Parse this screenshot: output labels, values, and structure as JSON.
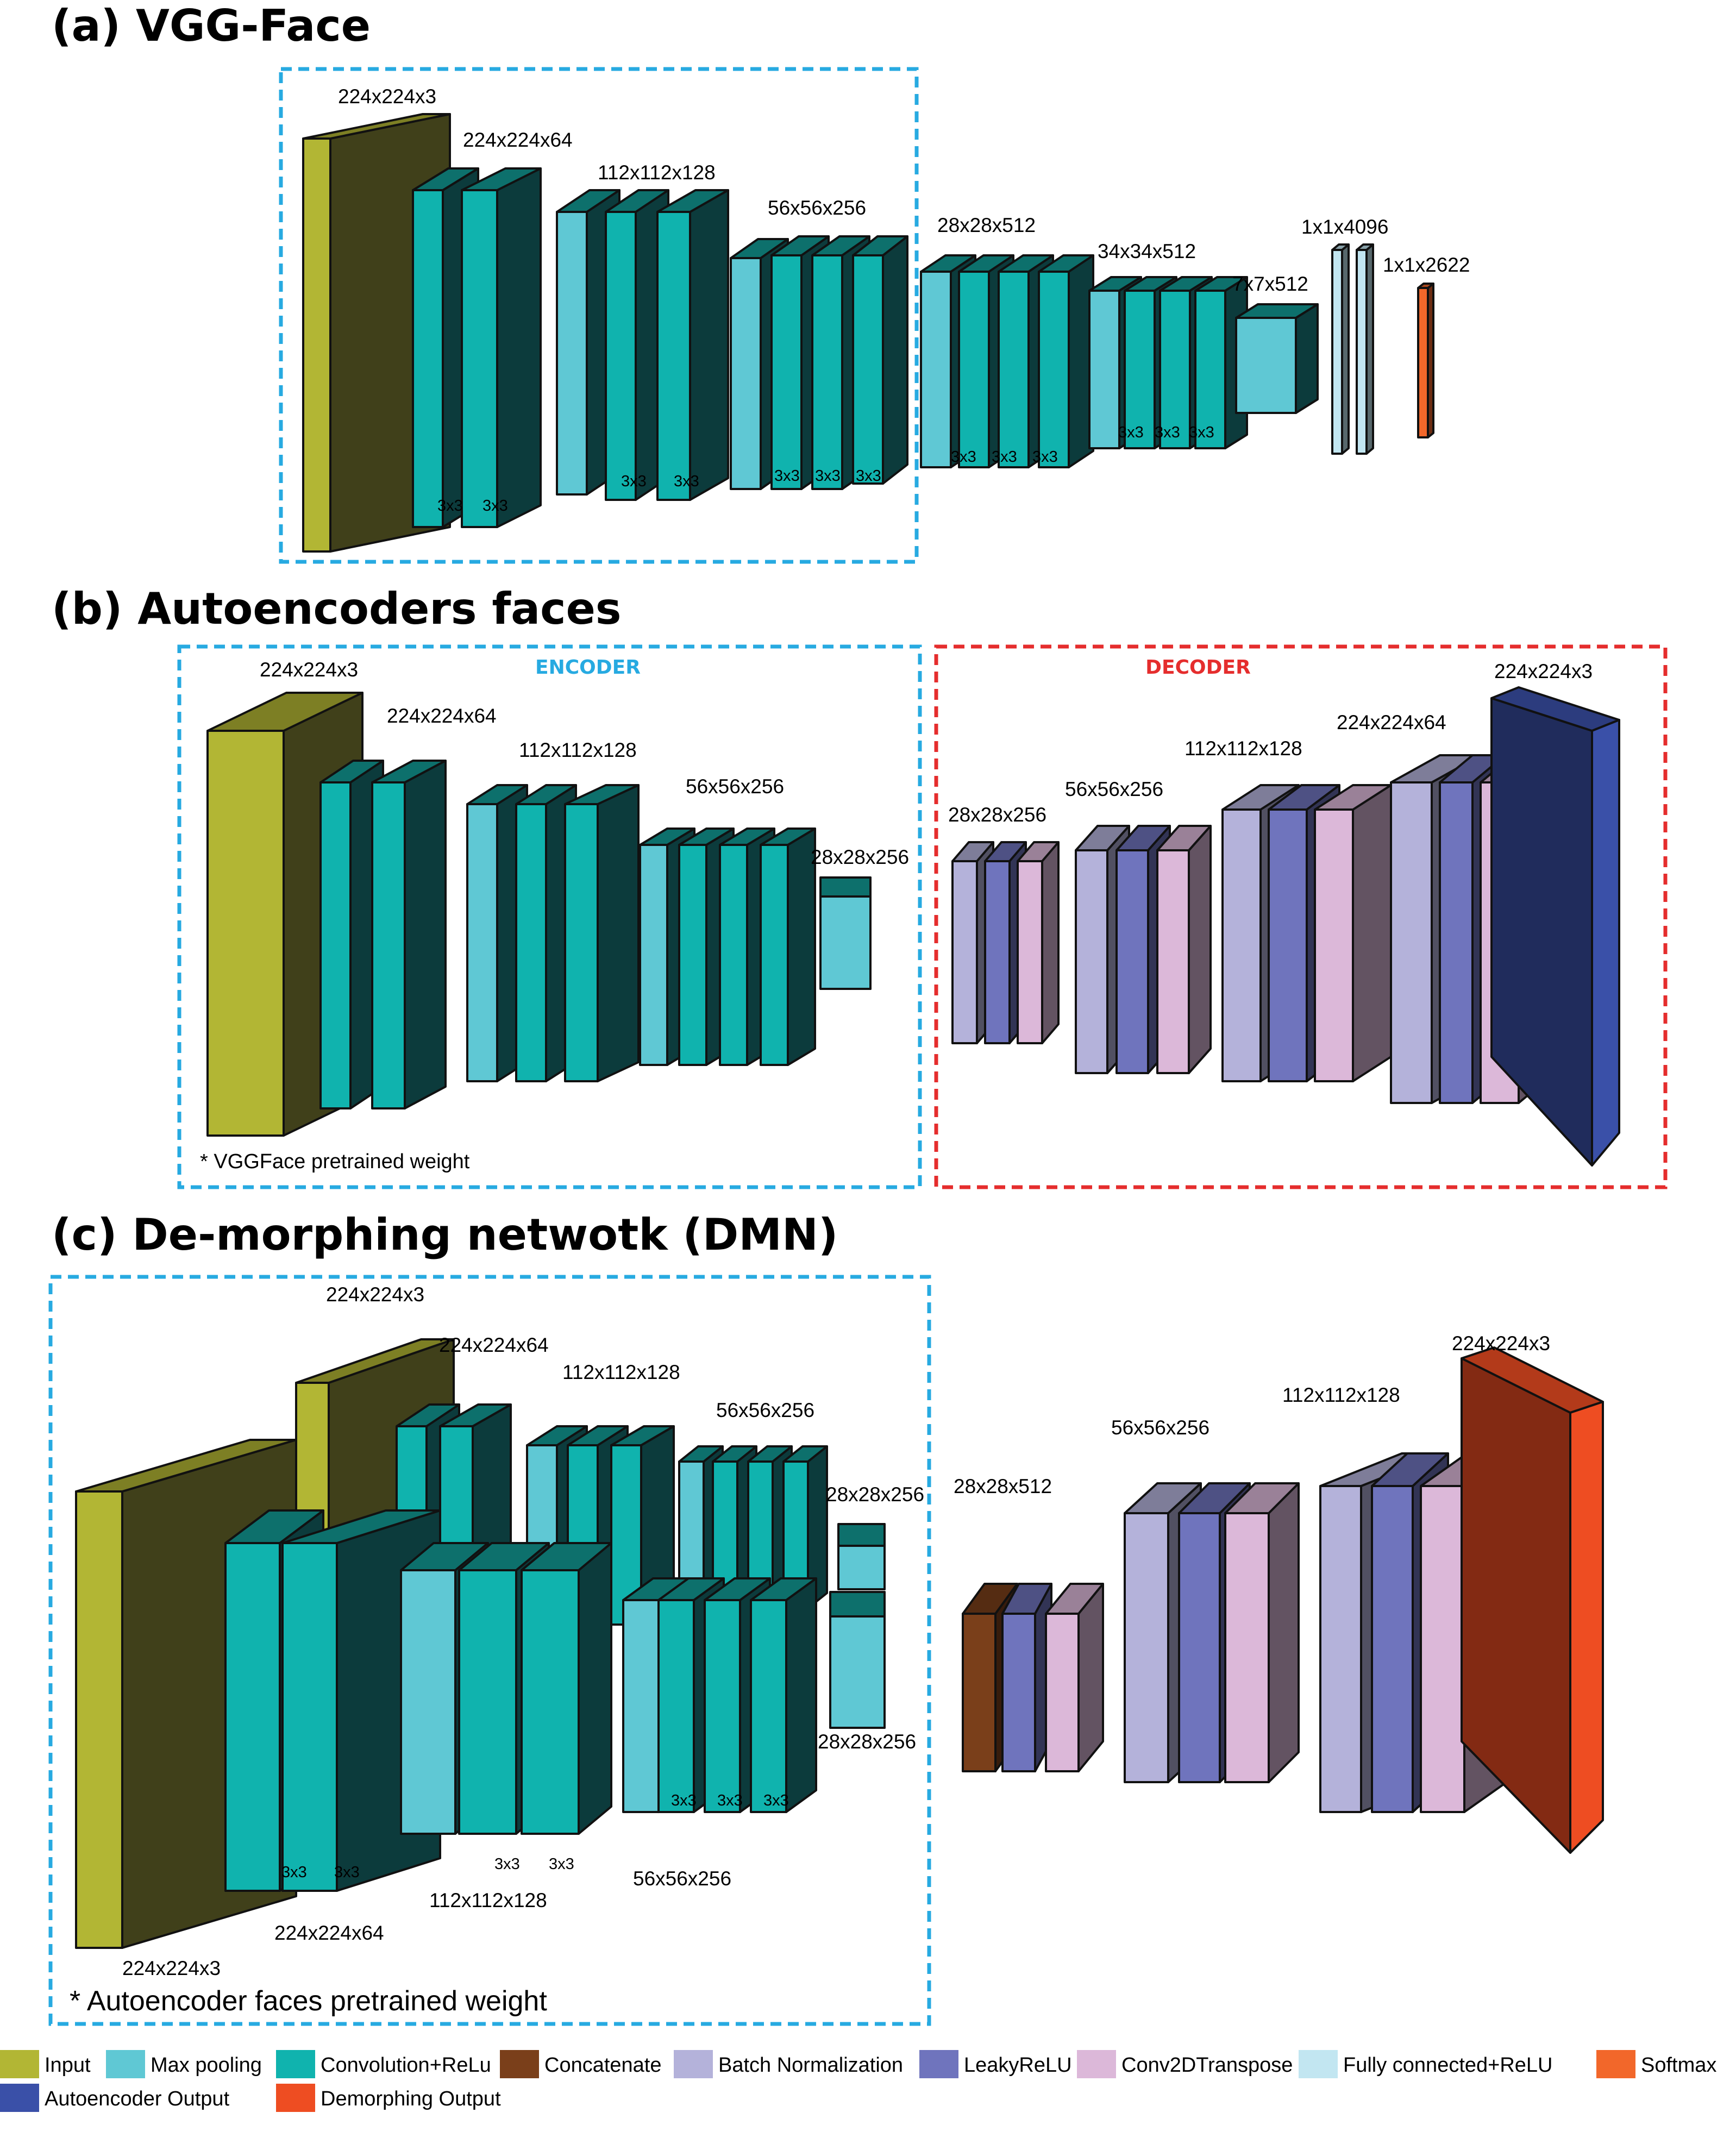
{
  "panels": {
    "a": {
      "title": "(a) VGG-Face"
    },
    "b": {
      "title": "(b) Autoencoders faces",
      "encoder_label": "ENCODER",
      "decoder_label": "DECODER",
      "note": "* VGGFace pretrained weight"
    },
    "c": {
      "title": "(c) De-morphing netwotk (DMN)",
      "note": "* Autoencoder faces pretrained weight"
    }
  },
  "labels": {
    "a": [
      "224x224x3",
      "224x224x64",
      "112x112x128",
      "56x56x256",
      "28x28x512",
      "34x34x512",
      "7x7x512",
      "1x1x4096",
      "1x1x2622"
    ],
    "b": [
      "224x224x3",
      "224x224x64",
      "112x112x128",
      "56x56x256",
      "28x28x256",
      "28x28x256",
      "56x56x256",
      "112x112x128",
      "224x224x64",
      "224x224x3"
    ],
    "c": [
      "224x224x3",
      "224x224x64",
      "112x112x128",
      "56x56x256",
      "28x28x256",
      "28x28x256",
      "56x56x256",
      "112x112x128",
      "224x224x64",
      "224x224x3",
      "28x28x512",
      "56x56x256",
      "112x112x128",
      "224x224x3"
    ]
  },
  "kernel_label": "3x3",
  "kernel_label_spaced": "3 x 3",
  "colors": {
    "input": "#b2b634",
    "max_pooling": "#5fc8d4",
    "conv_relu": "#10b3ae",
    "concatenate": "#7a3f1a",
    "batch_norm": "#b4b2da",
    "leaky_relu": "#6f74bd",
    "conv2d_transpose": "#dcb8d9",
    "fully_connected": "#c2e6f1",
    "softmax": "#f2672a",
    "autoencoder_output": "#3a50a8",
    "demorphing_output": "#ee4d22"
  },
  "legend": [
    {
      "key": "input",
      "label": "Input"
    },
    {
      "key": "max_pooling",
      "label": "Max pooling"
    },
    {
      "key": "conv_relu",
      "label": "Convolution+ReLu"
    },
    {
      "key": "concatenate",
      "label": "Concatenate"
    },
    {
      "key": "batch_norm",
      "label": "Batch Normalization"
    },
    {
      "key": "leaky_relu",
      "label": "LeakyReLU"
    },
    {
      "key": "conv2d_transpose",
      "label": "Conv2DTranspose"
    },
    {
      "key": "fully_connected",
      "label": "Fully connected+ReLU"
    },
    {
      "key": "softmax",
      "label": "Softmax"
    },
    {
      "key": "autoencoder_output",
      "label": "Autoencoder Output"
    },
    {
      "key": "demorphing_output",
      "label": "Demorphing Output"
    }
  ]
}
